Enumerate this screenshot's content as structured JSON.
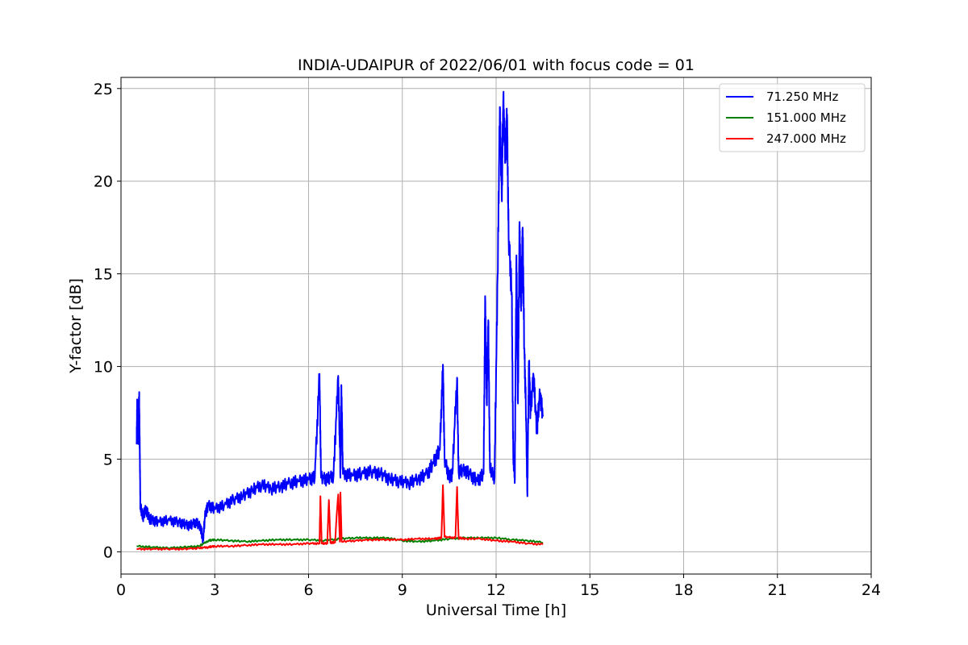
{
  "chart_data": {
    "type": "line",
    "title": "INDIA-UDAIPUR of 2022/06/01 with focus code = 01",
    "xlabel": "Universal Time [h]",
    "ylabel": "Y-factor [dB]",
    "xlim": [
      0,
      24
    ],
    "ylim": [
      -1.2,
      25.6
    ],
    "xticks": [
      0,
      3,
      6,
      9,
      12,
      15,
      18,
      21,
      24
    ],
    "yticks": [
      0,
      5,
      10,
      15,
      20,
      25
    ],
    "grid": true,
    "legend_position": "top-right",
    "series": [
      {
        "name": " 71.250 MHz",
        "color": "#0000ff",
        "points": [
          [
            0.5,
            5.8
          ],
          [
            0.52,
            8.2
          ],
          [
            0.55,
            6.0
          ],
          [
            0.58,
            8.4
          ],
          [
            0.6,
            5.5
          ],
          [
            0.62,
            2.4
          ],
          [
            0.7,
            1.9
          ],
          [
            0.8,
            2.3
          ],
          [
            0.9,
            1.8
          ],
          [
            1.0,
            1.7
          ],
          [
            1.2,
            1.6
          ],
          [
            1.5,
            1.7
          ],
          [
            1.8,
            1.6
          ],
          [
            2.0,
            1.5
          ],
          [
            2.2,
            1.4
          ],
          [
            2.4,
            1.6
          ],
          [
            2.55,
            1.3
          ],
          [
            2.62,
            0.6
          ],
          [
            2.7,
            2.1
          ],
          [
            2.8,
            2.5
          ],
          [
            3.0,
            2.3
          ],
          [
            3.3,
            2.5
          ],
          [
            3.6,
            2.8
          ],
          [
            3.9,
            3.0
          ],
          [
            4.2,
            3.3
          ],
          [
            4.5,
            3.6
          ],
          [
            4.8,
            3.4
          ],
          [
            5.1,
            3.5
          ],
          [
            5.4,
            3.7
          ],
          [
            5.7,
            3.8
          ],
          [
            6.0,
            3.9
          ],
          [
            6.2,
            4.0
          ],
          [
            6.35,
            9.6
          ],
          [
            6.4,
            4.0
          ],
          [
            6.6,
            3.9
          ],
          [
            6.8,
            4.1
          ],
          [
            6.95,
            9.5
          ],
          [
            7.02,
            4.0
          ],
          [
            7.05,
            9.0
          ],
          [
            7.1,
            4.2
          ],
          [
            7.4,
            4.1
          ],
          [
            7.7,
            4.2
          ],
          [
            8.0,
            4.3
          ],
          [
            8.3,
            4.2
          ],
          [
            8.6,
            3.9
          ],
          [
            8.9,
            3.8
          ],
          [
            9.2,
            3.7
          ],
          [
            9.5,
            3.9
          ],
          [
            9.8,
            4.2
          ],
          [
            10.0,
            4.8
          ],
          [
            10.2,
            5.5
          ],
          [
            10.3,
            10.1
          ],
          [
            10.35,
            5.0
          ],
          [
            10.5,
            4.0
          ],
          [
            10.6,
            4.2
          ],
          [
            10.75,
            9.4
          ],
          [
            10.8,
            4.3
          ],
          [
            11.0,
            4.4
          ],
          [
            11.2,
            4.1
          ],
          [
            11.4,
            3.8
          ],
          [
            11.6,
            4.2
          ],
          [
            11.65,
            13.8
          ],
          [
            11.7,
            8.0
          ],
          [
            11.75,
            12.5
          ],
          [
            11.8,
            4.5
          ],
          [
            11.95,
            4.0
          ],
          [
            12.05,
            15.0
          ],
          [
            12.12,
            24.0
          ],
          [
            12.18,
            19.0
          ],
          [
            12.23,
            24.4
          ],
          [
            12.3,
            21.0
          ],
          [
            12.35,
            23.6
          ],
          [
            12.4,
            17.0
          ],
          [
            12.5,
            14.0
          ],
          [
            12.55,
            5.0
          ],
          [
            12.6,
            4.0
          ],
          [
            12.65,
            16.0
          ],
          [
            12.7,
            8.0
          ],
          [
            12.75,
            17.8
          ],
          [
            12.8,
            13.0
          ],
          [
            12.85,
            17.5
          ],
          [
            12.9,
            11.0
          ],
          [
            12.95,
            8.0
          ],
          [
            13.0,
            3.0
          ],
          [
            13.05,
            10.3
          ],
          [
            13.1,
            7.5
          ],
          [
            13.2,
            9.5
          ],
          [
            13.3,
            6.5
          ],
          [
            13.4,
            8.5
          ],
          [
            13.5,
            7.3
          ]
        ]
      },
      {
        "name": "151.000 MHz",
        "color": "#008000",
        "points": [
          [
            0.5,
            0.3
          ],
          [
            1.0,
            0.25
          ],
          [
            1.5,
            0.2
          ],
          [
            2.0,
            0.25
          ],
          [
            2.5,
            0.3
          ],
          [
            2.8,
            0.6
          ],
          [
            3.0,
            0.65
          ],
          [
            3.5,
            0.6
          ],
          [
            4.0,
            0.55
          ],
          [
            4.5,
            0.6
          ],
          [
            5.0,
            0.65
          ],
          [
            5.5,
            0.65
          ],
          [
            6.0,
            0.65
          ],
          [
            6.5,
            0.6
          ],
          [
            7.0,
            0.7
          ],
          [
            7.5,
            0.75
          ],
          [
            8.0,
            0.75
          ],
          [
            8.5,
            0.75
          ],
          [
            9.0,
            0.6
          ],
          [
            9.5,
            0.55
          ],
          [
            10.0,
            0.6
          ],
          [
            10.5,
            0.7
          ],
          [
            11.0,
            0.75
          ],
          [
            11.5,
            0.75
          ],
          [
            12.0,
            0.75
          ],
          [
            12.5,
            0.65
          ],
          [
            13.0,
            0.6
          ],
          [
            13.5,
            0.5
          ]
        ]
      },
      {
        "name": "247.000 MHz",
        "color": "#ff0000",
        "points": [
          [
            0.5,
            0.15
          ],
          [
            1.0,
            0.15
          ],
          [
            1.5,
            0.15
          ],
          [
            2.0,
            0.15
          ],
          [
            2.5,
            0.2
          ],
          [
            2.8,
            0.25
          ],
          [
            3.0,
            0.3
          ],
          [
            3.5,
            0.3
          ],
          [
            4.0,
            0.35
          ],
          [
            4.5,
            0.4
          ],
          [
            5.0,
            0.4
          ],
          [
            5.5,
            0.4
          ],
          [
            6.0,
            0.45
          ],
          [
            6.35,
            0.45
          ],
          [
            6.38,
            3.0
          ],
          [
            6.42,
            0.45
          ],
          [
            6.6,
            0.45
          ],
          [
            6.65,
            2.8
          ],
          [
            6.7,
            0.5
          ],
          [
            6.85,
            0.5
          ],
          [
            6.9,
            2.0
          ],
          [
            6.95,
            3.1
          ],
          [
            7.0,
            0.55
          ],
          [
            7.02,
            3.2
          ],
          [
            7.06,
            0.55
          ],
          [
            7.5,
            0.6
          ],
          [
            8.0,
            0.65
          ],
          [
            8.5,
            0.65
          ],
          [
            9.0,
            0.65
          ],
          [
            9.5,
            0.7
          ],
          [
            10.0,
            0.7
          ],
          [
            10.25,
            0.75
          ],
          [
            10.3,
            3.6
          ],
          [
            10.35,
            0.8
          ],
          [
            10.7,
            0.75
          ],
          [
            10.75,
            3.5
          ],
          [
            10.8,
            0.75
          ],
          [
            11.0,
            0.7
          ],
          [
            11.5,
            0.7
          ],
          [
            12.0,
            0.6
          ],
          [
            12.5,
            0.55
          ],
          [
            13.0,
            0.45
          ],
          [
            13.5,
            0.4
          ]
        ]
      }
    ]
  }
}
